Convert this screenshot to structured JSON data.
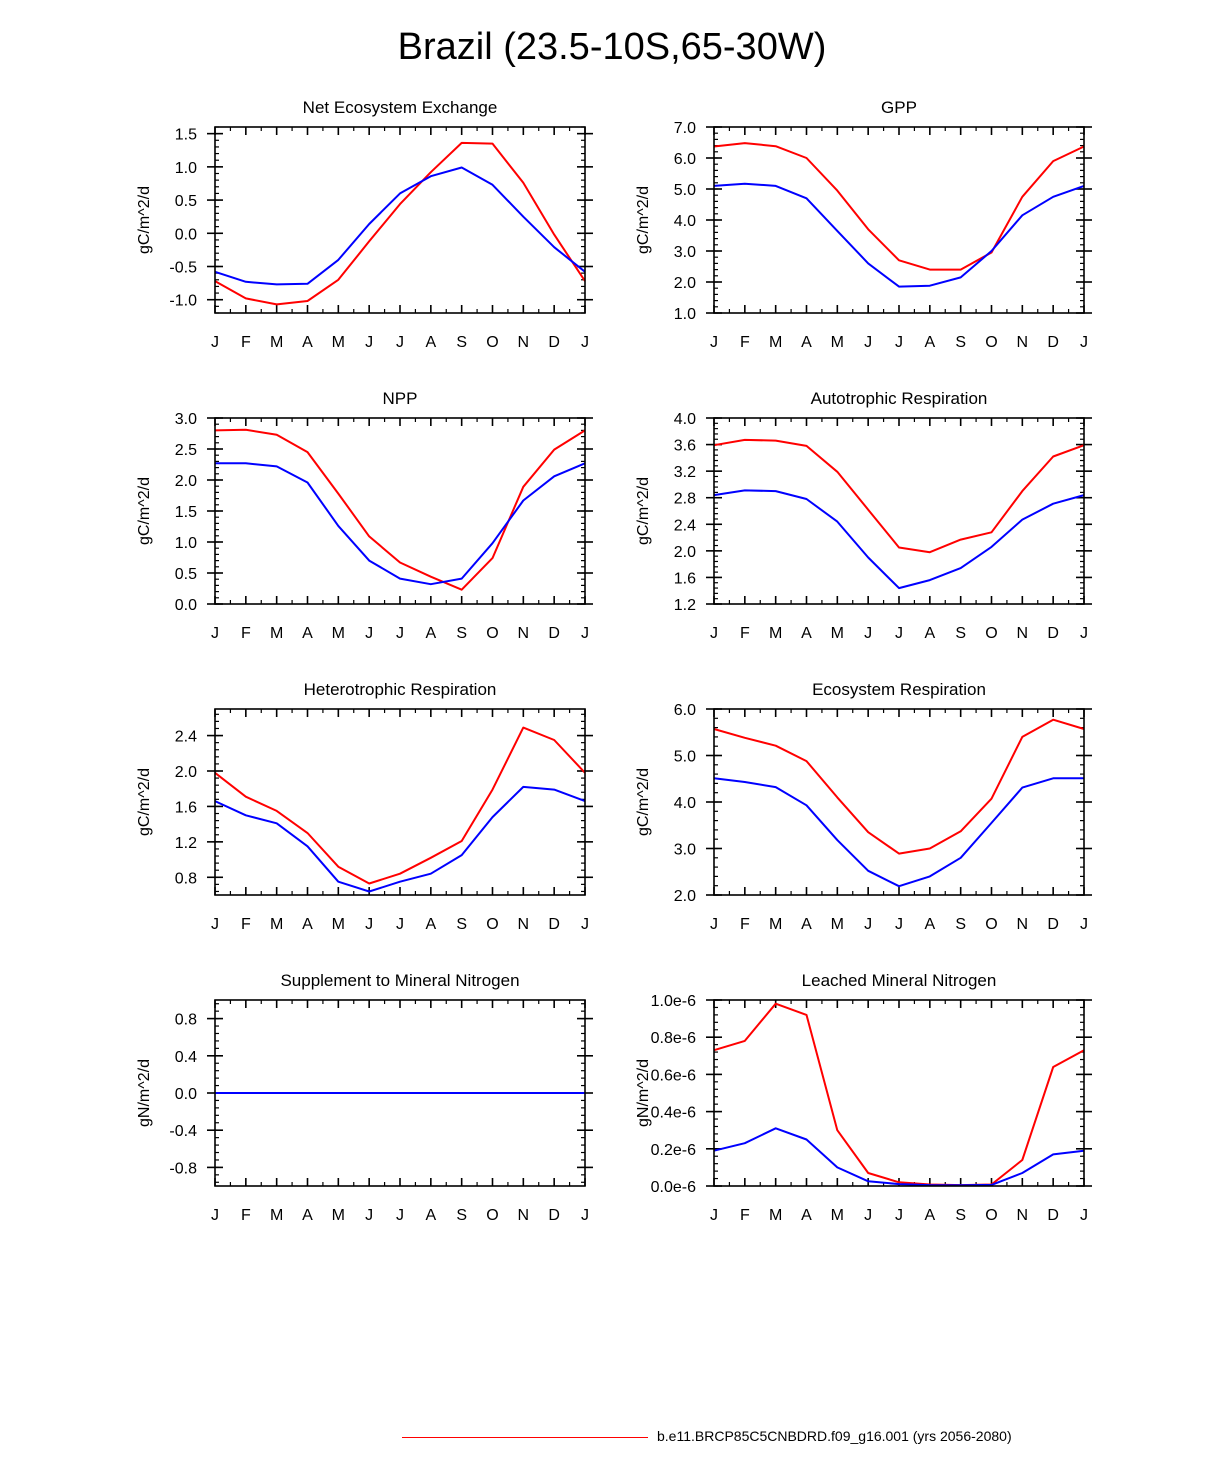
{
  "title": "Brazil (23.5-10S,65-30W)",
  "series_colors": {
    "case1": "#ff0000",
    "case2": "#0000ff"
  },
  "legend": {
    "label": "b.e11.BRCP85C5CNBDRD.f09_g16.001 (yrs 2056-2080)",
    "color": "#ff0000"
  },
  "chart_data": [
    {
      "type": "line",
      "title": "Net Ecosystem Exchange",
      "ylabel": "gC/m^2/d",
      "categories": [
        "J",
        "F",
        "M",
        "A",
        "M",
        "J",
        "J",
        "A",
        "S",
        "O",
        "N",
        "D",
        "J"
      ],
      "ylim": [
        -1.2,
        1.6
      ],
      "yticks": [
        -1.0,
        -0.5,
        0.0,
        0.5,
        1.0,
        1.5
      ],
      "ytick_labels": [
        "-1.0",
        "-0.5",
        "0.0",
        "0.5",
        "1.0",
        "1.5"
      ],
      "series": [
        {
          "name": "red",
          "color": "#ff0000",
          "values": [
            -0.72,
            -0.98,
            -1.07,
            -1.02,
            -0.7,
            -0.12,
            0.44,
            0.92,
            1.36,
            1.35,
            0.76,
            -0.02,
            -0.72
          ]
        },
        {
          "name": "blue",
          "color": "#0000ff",
          "values": [
            -0.58,
            -0.73,
            -0.77,
            -0.76,
            -0.4,
            0.14,
            0.6,
            0.86,
            0.99,
            0.73,
            0.25,
            -0.21,
            -0.58
          ]
        }
      ]
    },
    {
      "type": "line",
      "title": "GPP",
      "ylabel": "gC/m^2/d",
      "categories": [
        "J",
        "F",
        "M",
        "A",
        "M",
        "J",
        "J",
        "A",
        "S",
        "O",
        "N",
        "D",
        "J"
      ],
      "ylim": [
        1.0,
        7.0
      ],
      "yticks": [
        1.0,
        2.0,
        3.0,
        4.0,
        5.0,
        6.0,
        7.0
      ],
      "ytick_labels": [
        "1.0",
        "2.0",
        "3.0",
        "4.0",
        "5.0",
        "6.0",
        "7.0"
      ],
      "series": [
        {
          "name": "red",
          "color": "#ff0000",
          "values": [
            6.37,
            6.48,
            6.38,
            6.0,
            4.95,
            3.7,
            2.7,
            2.4,
            2.4,
            2.95,
            4.75,
            5.9,
            6.37
          ]
        },
        {
          "name": "blue",
          "color": "#0000ff",
          "values": [
            5.1,
            5.17,
            5.1,
            4.7,
            3.65,
            2.6,
            1.85,
            1.88,
            2.15,
            3.0,
            4.15,
            4.75,
            5.1
          ]
        }
      ]
    },
    {
      "type": "line",
      "title": "NPP",
      "ylabel": "gC/m^2/d",
      "categories": [
        "J",
        "F",
        "M",
        "A",
        "M",
        "J",
        "J",
        "A",
        "S",
        "O",
        "N",
        "D",
        "J"
      ],
      "ylim": [
        0.0,
        3.0
      ],
      "yticks": [
        0.0,
        0.5,
        1.0,
        1.5,
        2.0,
        2.5,
        3.0
      ],
      "ytick_labels": [
        "0.0",
        "0.5",
        "1.0",
        "1.5",
        "2.0",
        "2.5",
        "3.0"
      ],
      "series": [
        {
          "name": "red",
          "color": "#ff0000",
          "values": [
            2.8,
            2.81,
            2.73,
            2.45,
            1.78,
            1.09,
            0.67,
            0.44,
            0.23,
            0.74,
            1.89,
            2.49,
            2.8
          ]
        },
        {
          "name": "blue",
          "color": "#0000ff",
          "values": [
            2.27,
            2.27,
            2.22,
            1.96,
            1.26,
            0.7,
            0.41,
            0.32,
            0.41,
            0.98,
            1.67,
            2.06,
            2.27
          ]
        }
      ]
    },
    {
      "type": "line",
      "title": "Autotrophic Respiration",
      "ylabel": "gC/m^2/d",
      "categories": [
        "J",
        "F",
        "M",
        "A",
        "M",
        "J",
        "J",
        "A",
        "S",
        "O",
        "N",
        "D",
        "J"
      ],
      "ylim": [
        1.2,
        4.0
      ],
      "yticks": [
        1.2,
        1.6,
        2.0,
        2.4,
        2.8,
        3.2,
        3.6,
        4.0
      ],
      "ytick_labels": [
        "1.2",
        "1.6",
        "2.0",
        "2.4",
        "2.8",
        "3.2",
        "3.6",
        "4.0"
      ],
      "series": [
        {
          "name": "red",
          "color": "#ff0000",
          "values": [
            3.59,
            3.67,
            3.66,
            3.58,
            3.19,
            2.62,
            2.05,
            1.98,
            2.17,
            2.28,
            2.9,
            3.42,
            3.59
          ]
        },
        {
          "name": "blue",
          "color": "#0000ff",
          "values": [
            2.84,
            2.91,
            2.9,
            2.78,
            2.44,
            1.9,
            1.44,
            1.56,
            1.74,
            2.06,
            2.47,
            2.71,
            2.84
          ]
        }
      ]
    },
    {
      "type": "line",
      "title": "Heterotrophic Respiration",
      "ylabel": "gC/m^2/d",
      "categories": [
        "J",
        "F",
        "M",
        "A",
        "M",
        "J",
        "J",
        "A",
        "S",
        "O",
        "N",
        "D",
        "J"
      ],
      "ylim": [
        0.6,
        2.7
      ],
      "yticks": [
        0.8,
        1.2,
        1.6,
        2.0,
        2.4
      ],
      "ytick_labels": [
        "0.8",
        "1.2",
        "1.6",
        "2.0",
        "2.4"
      ],
      "series": [
        {
          "name": "red",
          "color": "#ff0000",
          "values": [
            1.98,
            1.71,
            1.55,
            1.3,
            0.92,
            0.73,
            0.84,
            1.02,
            1.21,
            1.79,
            2.49,
            2.35,
            1.98
          ]
        },
        {
          "name": "blue",
          "color": "#0000ff",
          "values": [
            1.66,
            1.5,
            1.41,
            1.15,
            0.75,
            0.64,
            0.75,
            0.84,
            1.05,
            1.48,
            1.82,
            1.79,
            1.66
          ]
        }
      ]
    },
    {
      "type": "line",
      "title": "Ecosystem Respiration",
      "ylabel": "gC/m^2/d",
      "categories": [
        "J",
        "F",
        "M",
        "A",
        "M",
        "J",
        "J",
        "A",
        "S",
        "O",
        "N",
        "D",
        "J"
      ],
      "ylim": [
        2.0,
        6.0
      ],
      "yticks": [
        2.0,
        3.0,
        4.0,
        5.0,
        6.0
      ],
      "ytick_labels": [
        "2.0",
        "3.0",
        "4.0",
        "5.0",
        "6.0"
      ],
      "series": [
        {
          "name": "red",
          "color": "#ff0000",
          "values": [
            5.57,
            5.38,
            5.21,
            4.88,
            4.1,
            3.35,
            2.89,
            3.0,
            3.37,
            4.07,
            5.4,
            5.77,
            5.57
          ]
        },
        {
          "name": "blue",
          "color": "#0000ff",
          "values": [
            4.51,
            4.43,
            4.32,
            3.93,
            3.18,
            2.52,
            2.19,
            2.4,
            2.8,
            3.55,
            4.31,
            4.51,
            4.51
          ]
        }
      ]
    },
    {
      "type": "line",
      "title": "Supplement to Mineral Nitrogen",
      "ylabel": "gN/m^2/d",
      "categories": [
        "J",
        "F",
        "M",
        "A",
        "M",
        "J",
        "J",
        "A",
        "S",
        "O",
        "N",
        "D",
        "J"
      ],
      "ylim": [
        -1.0,
        1.0
      ],
      "yticks": [
        -0.8,
        -0.4,
        0.0,
        0.4,
        0.8
      ],
      "ytick_labels": [
        "-0.8",
        "-0.4",
        "0.0",
        "0.4",
        "0.8"
      ],
      "series": [
        {
          "name": "red",
          "color": "#ff0000",
          "values": [
            0,
            0,
            0,
            0,
            0,
            0,
            0,
            0,
            0,
            0,
            0,
            0,
            0
          ]
        },
        {
          "name": "blue",
          "color": "#0000ff",
          "values": [
            0,
            0,
            0,
            0,
            0,
            0,
            0,
            0,
            0,
            0,
            0,
            0,
            0
          ]
        }
      ]
    },
    {
      "type": "line",
      "title": "Leached Mineral Nitrogen",
      "ylabel": "gN/m^2/d",
      "categories": [
        "J",
        "F",
        "M",
        "A",
        "M",
        "J",
        "J",
        "A",
        "S",
        "O",
        "N",
        "D",
        "J"
      ],
      "ylim": [
        0.0,
        1e-06
      ],
      "yticks": [
        0.0,
        2e-07,
        4e-07,
        6e-07,
        8e-07,
        1e-06
      ],
      "ytick_labels": [
        "0.0e-6",
        "0.2e-6",
        "0.4e-6",
        "0.6e-6",
        "0.8e-6",
        "1.0e-6"
      ],
      "series": [
        {
          "name": "red",
          "color": "#ff0000",
          "values": [
            7.3e-07,
            7.8e-07,
            9.8e-07,
            9.2e-07,
            3e-07,
            7e-08,
            2e-08,
            8e-09,
            5e-09,
            8e-09,
            1.4e-07,
            6.4e-07,
            7.3e-07
          ]
        },
        {
          "name": "blue",
          "color": "#0000ff",
          "values": [
            1.9e-07,
            2.3e-07,
            3.1e-07,
            2.5e-07,
            1e-07,
            2.5e-08,
            1e-08,
            5e-09,
            4e-09,
            6e-09,
            7e-08,
            1.7e-07,
            1.9e-07
          ]
        }
      ]
    }
  ]
}
